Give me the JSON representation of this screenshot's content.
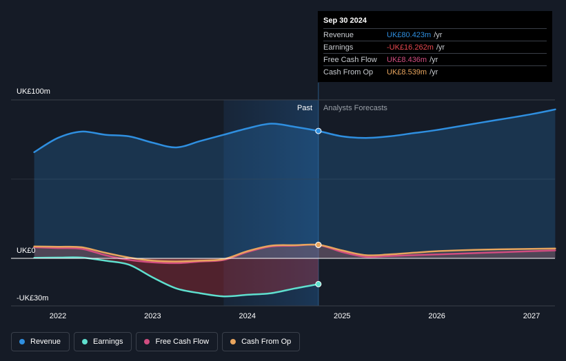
{
  "chart_data": {
    "type": "line",
    "title": "",
    "x_ticks": [
      "2022",
      "2023",
      "2024",
      "2025",
      "2026",
      "2027"
    ],
    "y_labels": {
      "top": "UK£100m",
      "zero": "UK£0",
      "bottom": "-UK£30m"
    },
    "ylim": [
      -30,
      100
    ],
    "xlim": [
      2021.5,
      2027.25
    ],
    "regions": {
      "past_label": "Past",
      "forecast_label": "Analysts Forecasts",
      "divider_x": 2024.75,
      "highlight_start": 2023.75
    },
    "series": [
      {
        "name": "Revenue",
        "color": "#2f8fe0",
        "x": [
          2021.75,
          2022.0,
          2022.25,
          2022.5,
          2022.75,
          2023.0,
          2023.25,
          2023.5,
          2023.75,
          2024.0,
          2024.25,
          2024.5,
          2024.75,
          2025.0,
          2025.25,
          2025.5,
          2025.75,
          2026.0,
          2026.5,
          2027.0,
          2027.25
        ],
        "y": [
          67,
          76,
          80,
          78,
          77,
          73,
          70,
          74,
          78,
          82,
          85,
          83,
          80.4,
          77,
          76,
          77,
          79,
          81,
          86,
          91,
          94
        ]
      },
      {
        "name": "Earnings",
        "color": "#5fe0cf",
        "x": [
          2021.75,
          2022.0,
          2022.25,
          2022.5,
          2022.75,
          2023.0,
          2023.25,
          2023.5,
          2023.75,
          2024.0,
          2024.25,
          2024.5,
          2024.75
        ],
        "y": [
          0.3,
          0.5,
          0.5,
          -1.5,
          -4,
          -12,
          -19,
          -22,
          -24,
          -23,
          -22,
          -19,
          -16.262
        ]
      },
      {
        "name": "Free Cash Flow",
        "color": "#d14d80",
        "x": [
          2021.75,
          2022.0,
          2022.25,
          2022.5,
          2022.75,
          2023.0,
          2023.25,
          2023.5,
          2023.75,
          2024.0,
          2024.25,
          2024.5,
          2024.75,
          2025.0,
          2025.25,
          2025.5,
          2025.75,
          2026.0,
          2026.5,
          2027.0,
          2027.25
        ],
        "y": [
          7,
          6.5,
          6,
          2,
          -1,
          -2.5,
          -3,
          -2,
          -1,
          4,
          7.5,
          8,
          8.436,
          4,
          1,
          1.5,
          2,
          2.5,
          3.5,
          4.5,
          5
        ]
      },
      {
        "name": "Cash From Op",
        "color": "#e8a55e",
        "x": [
          2021.75,
          2022.0,
          2022.25,
          2022.5,
          2022.75,
          2023.0,
          2023.25,
          2023.5,
          2023.75,
          2024.0,
          2024.25,
          2024.5,
          2024.75,
          2025.0,
          2025.25,
          2025.5,
          2025.75,
          2026.0,
          2026.5,
          2027.0,
          2027.25
        ],
        "y": [
          7.5,
          7.3,
          7,
          3.5,
          0.5,
          -1.5,
          -2,
          -1.5,
          -0.5,
          4.5,
          8,
          8.3,
          8.539,
          5,
          2,
          2.5,
          3.5,
          4.5,
          5.5,
          6,
          6.2
        ]
      }
    ],
    "tooltip": {
      "date": "Sep 30 2024",
      "rows": [
        {
          "label": "Revenue",
          "value": "UK£80.423m",
          "unit": "/yr",
          "color": "#2f8fe0"
        },
        {
          "label": "Earnings",
          "value": "-UK£16.262m",
          "unit": "/yr",
          "color": "#e8484f"
        },
        {
          "label": "Free Cash Flow",
          "value": "UK£8.436m",
          "unit": "/yr",
          "color": "#d14d80"
        },
        {
          "label": "Cash From Op",
          "value": "UK£8.539m",
          "unit": "/yr",
          "color": "#e8a55e"
        }
      ]
    },
    "legend": [
      {
        "label": "Revenue",
        "color": "#2f8fe0"
      },
      {
        "label": "Earnings",
        "color": "#5fe0cf"
      },
      {
        "label": "Free Cash Flow",
        "color": "#d14d80"
      },
      {
        "label": "Cash From Op",
        "color": "#e8a55e"
      }
    ]
  }
}
